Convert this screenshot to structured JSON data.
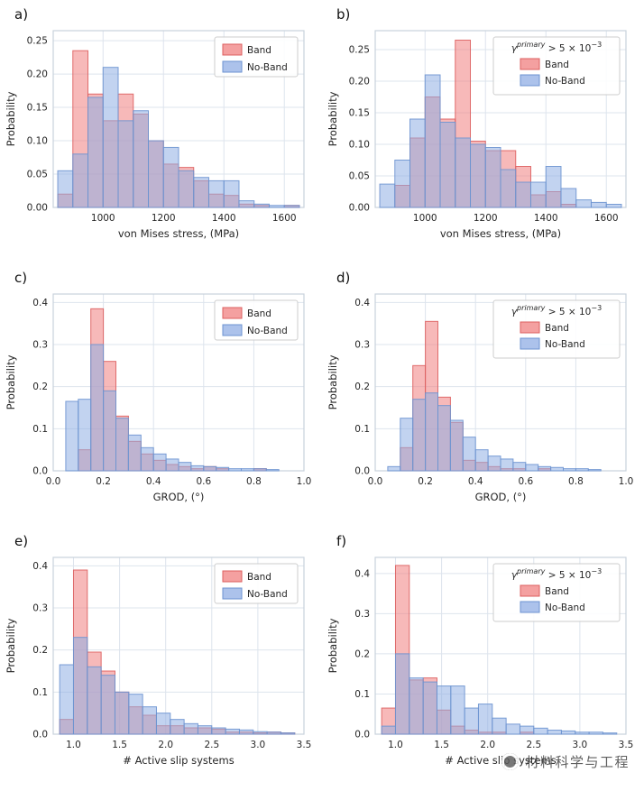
{
  "style": {
    "band_fill": "#f08080",
    "band_edge": "#dd5f5f",
    "noband_fill": "#90aee4",
    "noband_edge": "#6d93d0",
    "fill_opacity": 0.55,
    "grid_color": "#dde4ed",
    "frame_color": "#c9d2dc",
    "text_color": "#262626",
    "legend_border": "#cccccc"
  },
  "watermark": {
    "text": "材料科学与工程"
  },
  "chart_data": [
    {
      "label": "a)",
      "type": "bar",
      "subtype": "histogram",
      "xlabel": "von Mises stress, (MPa)",
      "ylabel": "Probability",
      "xlim": [
        835,
        1665
      ],
      "ylim": [
        0,
        0.265
      ],
      "x_tick_vals": [
        1000,
        1200,
        1400,
        1600
      ],
      "x_tick_labels": [
        "1000",
        "1200",
        "1400",
        "1600"
      ],
      "y_tick_vals": [
        0,
        0.05,
        0.1,
        0.15,
        0.2,
        0.25
      ],
      "y_tick_labels": [
        "0.00",
        "0.05",
        "0.10",
        "0.15",
        "0.20",
        "0.25"
      ],
      "bin_start": 850,
      "bin_width": 50,
      "grid": true,
      "legend_position": "upper right",
      "legend_title": null,
      "series": [
        {
          "name": "Band",
          "values": [
            0.02,
            0.235,
            0.17,
            0.13,
            0.17,
            0.14,
            0.1,
            0.065,
            0.06,
            0.04,
            0.02,
            0.018,
            0.005,
            0.003,
            0.0,
            0.003
          ]
        },
        {
          "name": "No-Band",
          "values": [
            0.055,
            0.08,
            0.165,
            0.21,
            0.13,
            0.145,
            0.1,
            0.09,
            0.055,
            0.045,
            0.04,
            0.04,
            0.01,
            0.005,
            0.003,
            0.003
          ]
        }
      ]
    },
    {
      "label": "b)",
      "type": "bar",
      "subtype": "histogram",
      "xlabel": "von Mises stress, (MPa)",
      "ylabel": "Probability",
      "xlim": [
        835,
        1665
      ],
      "ylim": [
        0,
        0.28
      ],
      "x_tick_vals": [
        1000,
        1200,
        1400,
        1600
      ],
      "x_tick_labels": [
        "1000",
        "1200",
        "1400",
        "1600"
      ],
      "y_tick_vals": [
        0,
        0.05,
        0.1,
        0.15,
        0.2,
        0.25
      ],
      "y_tick_labels": [
        "0.00",
        "0.05",
        "0.10",
        "0.15",
        "0.20",
        "0.25"
      ],
      "bin_start": 850,
      "bin_width": 50,
      "grid": true,
      "legend_position": "upper right",
      "legend_title": [
        {
          "t": "γ",
          "sup": false,
          "it": true
        },
        {
          "t": "primary",
          "sup": true,
          "it": true
        },
        {
          "t": " > 5 × 10",
          "sup": false,
          "it": false
        },
        {
          "t": "−3",
          "sup": true,
          "it": false
        }
      ],
      "series": [
        {
          "name": "Band",
          "values": [
            0.0,
            0.035,
            0.11,
            0.175,
            0.14,
            0.265,
            0.105,
            0.09,
            0.09,
            0.065,
            0.02,
            0.025,
            0.005,
            0.0,
            0.0,
            0.0
          ]
        },
        {
          "name": "No-Band",
          "values": [
            0.037,
            0.075,
            0.14,
            0.21,
            0.135,
            0.11,
            0.1,
            0.095,
            0.06,
            0.04,
            0.04,
            0.065,
            0.03,
            0.012,
            0.008,
            0.005
          ]
        }
      ]
    },
    {
      "label": "c)",
      "type": "bar",
      "subtype": "histogram",
      "xlabel": "GROD, (°)",
      "ylabel": "Probability",
      "xlim": [
        0.0,
        1.0
      ],
      "ylim": [
        0,
        0.42
      ],
      "x_tick_vals": [
        0.0,
        0.2,
        0.4,
        0.6,
        0.8,
        1.0
      ],
      "x_tick_labels": [
        "0.0",
        "0.2",
        "0.4",
        "0.6",
        "0.8",
        "1.0"
      ],
      "y_tick_vals": [
        0,
        0.1,
        0.2,
        0.3,
        0.4
      ],
      "y_tick_labels": [
        "0.0",
        "0.1",
        "0.2",
        "0.3",
        "0.4"
      ],
      "bin_start": 0.05,
      "bin_width": 0.05,
      "grid": true,
      "legend_position": "upper right",
      "legend_title": null,
      "series": [
        {
          "name": "Band",
          "values": [
            0.0,
            0.05,
            0.385,
            0.26,
            0.13,
            0.07,
            0.04,
            0.025,
            0.015,
            0.01,
            0.005,
            0.01,
            0.005,
            0.0,
            0.0,
            0.005,
            0.0
          ]
        },
        {
          "name": "No-Band",
          "values": [
            0.165,
            0.17,
            0.3,
            0.19,
            0.125,
            0.085,
            0.055,
            0.04,
            0.028,
            0.02,
            0.012,
            0.01,
            0.008,
            0.005,
            0.005,
            0.005,
            0.003
          ]
        }
      ]
    },
    {
      "label": "d)",
      "type": "bar",
      "subtype": "histogram",
      "xlabel": "GROD, (°)",
      "ylabel": "Probability",
      "xlim": [
        0.0,
        1.0
      ],
      "ylim": [
        0,
        0.42
      ],
      "x_tick_vals": [
        0.0,
        0.2,
        0.4,
        0.6,
        0.8,
        1.0
      ],
      "x_tick_labels": [
        "0.0",
        "0.2",
        "0.4",
        "0.6",
        "0.8",
        "1.0"
      ],
      "y_tick_vals": [
        0,
        0.1,
        0.2,
        0.3,
        0.4
      ],
      "y_tick_labels": [
        "0.0",
        "0.1",
        "0.2",
        "0.3",
        "0.4"
      ],
      "bin_start": 0.05,
      "bin_width": 0.05,
      "grid": true,
      "legend_position": "upper right",
      "legend_title": [
        {
          "t": "γ",
          "sup": false,
          "it": true
        },
        {
          "t": "primary",
          "sup": true,
          "it": true
        },
        {
          "t": " > 5 × 10",
          "sup": false,
          "it": false
        },
        {
          "t": "−3",
          "sup": true,
          "it": false
        }
      ],
      "series": [
        {
          "name": "Band",
          "values": [
            0.0,
            0.055,
            0.25,
            0.355,
            0.175,
            0.115,
            0.025,
            0.02,
            0.01,
            0.005,
            0.005,
            0.0,
            0.005,
            0.0,
            0.0,
            0.0,
            0.0
          ]
        },
        {
          "name": "No-Band",
          "values": [
            0.01,
            0.125,
            0.17,
            0.185,
            0.155,
            0.12,
            0.08,
            0.05,
            0.035,
            0.028,
            0.02,
            0.015,
            0.01,
            0.008,
            0.005,
            0.005,
            0.003
          ]
        }
      ]
    },
    {
      "label": "e)",
      "type": "bar",
      "subtype": "histogram",
      "xlabel": "# Active slip systems",
      "ylabel": "Probability",
      "xlim": [
        0.78,
        3.5
      ],
      "ylim": [
        0,
        0.42
      ],
      "x_tick_vals": [
        1.0,
        1.5,
        2.0,
        2.5,
        3.0,
        3.5
      ],
      "x_tick_labels": [
        "1.0",
        "1.5",
        "2.0",
        "2.5",
        "3.0",
        "3.5"
      ],
      "y_tick_vals": [
        0,
        0.1,
        0.2,
        0.3,
        0.4
      ],
      "y_tick_labels": [
        "0.0",
        "0.1",
        "0.2",
        "0.3",
        "0.4"
      ],
      "bin_start": 0.85,
      "bin_width": 0.15,
      "grid": true,
      "legend_position": "upper right",
      "legend_title": null,
      "series": [
        {
          "name": "Band",
          "values": [
            0.035,
            0.39,
            0.195,
            0.15,
            0.1,
            0.065,
            0.045,
            0.02,
            0.02,
            0.015,
            0.015,
            0.012,
            0.005,
            0.005,
            0.003,
            0.005,
            0.003
          ]
        },
        {
          "name": "No-Band",
          "values": [
            0.165,
            0.23,
            0.16,
            0.14,
            0.1,
            0.095,
            0.065,
            0.05,
            0.035,
            0.025,
            0.02,
            0.015,
            0.012,
            0.01,
            0.006,
            0.005,
            0.003
          ]
        }
      ]
    },
    {
      "label": "f)",
      "type": "bar",
      "subtype": "histogram",
      "xlabel": "# Active slip systems",
      "ylabel": "Probability",
      "xlim": [
        0.78,
        3.5
      ],
      "ylim": [
        0,
        0.44
      ],
      "x_tick_vals": [
        1.0,
        1.5,
        2.0,
        2.5,
        3.0,
        3.5
      ],
      "x_tick_labels": [
        "1.0",
        "1.5",
        "2.0",
        "2.5",
        "3.0",
        "3.5"
      ],
      "y_tick_vals": [
        0,
        0.1,
        0.2,
        0.3,
        0.4
      ],
      "y_tick_labels": [
        "0.0",
        "0.1",
        "0.2",
        "0.3",
        "0.4"
      ],
      "bin_start": 0.85,
      "bin_width": 0.15,
      "grid": true,
      "legend_position": "upper right",
      "legend_title": [
        {
          "t": "γ",
          "sup": false,
          "it": true
        },
        {
          "t": "primary",
          "sup": true,
          "it": true
        },
        {
          "t": " > 5 × 10",
          "sup": false,
          "it": false
        },
        {
          "t": "−3",
          "sup": true,
          "it": false
        }
      ],
      "series": [
        {
          "name": "Band",
          "values": [
            0.065,
            0.42,
            0.135,
            0.14,
            0.06,
            0.02,
            0.01,
            0.005,
            0.005,
            0.0,
            0.005,
            0.0,
            0.0,
            0.0,
            0.0,
            0.0,
            0.0
          ]
        },
        {
          "name": "No-Band",
          "values": [
            0.02,
            0.2,
            0.14,
            0.13,
            0.12,
            0.12,
            0.065,
            0.075,
            0.04,
            0.025,
            0.02,
            0.015,
            0.01,
            0.008,
            0.005,
            0.005,
            0.003
          ]
        }
      ]
    }
  ]
}
